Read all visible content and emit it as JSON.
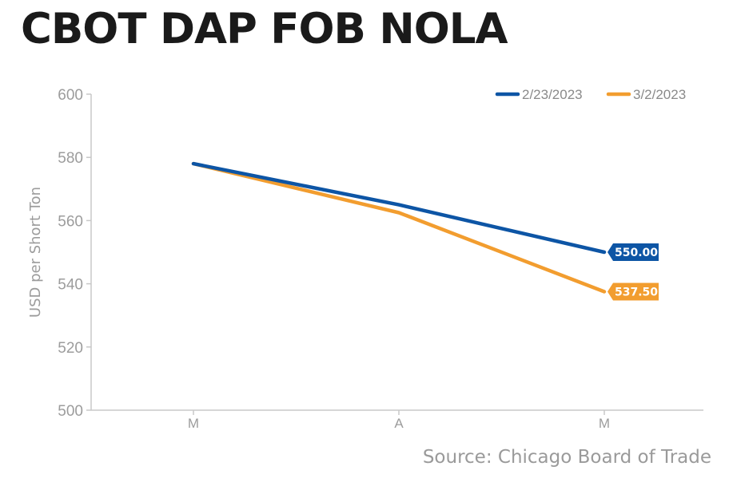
{
  "title": "CBOT DAP FOB NOLA",
  "source": "Source: Chicago Board of Trade",
  "colors": {
    "series1": "#0d55a5",
    "series2": "#f29d2f",
    "axis": "#c8c8c8",
    "ticks": "#9c9c9c",
    "title": "#1a1a1a"
  },
  "chart_data": {
    "type": "line",
    "title": "CBOT DAP FOB NOLA",
    "xlabel": "",
    "ylabel": "USD per Short Ton",
    "categories": [
      "M",
      "A",
      "M"
    ],
    "ylim": [
      500,
      600
    ],
    "yticks": [
      "600",
      "580",
      "560",
      "540",
      "520",
      "500"
    ],
    "grid": false,
    "legend_position": "top-right",
    "series": [
      {
        "name": "2/23/2023",
        "values": [
          578,
          565,
          550
        ],
        "end_label": "550.00"
      },
      {
        "name": "3/2/2023",
        "values": [
          578,
          562.5,
          537.5
        ],
        "end_label": "537.50"
      }
    ]
  }
}
